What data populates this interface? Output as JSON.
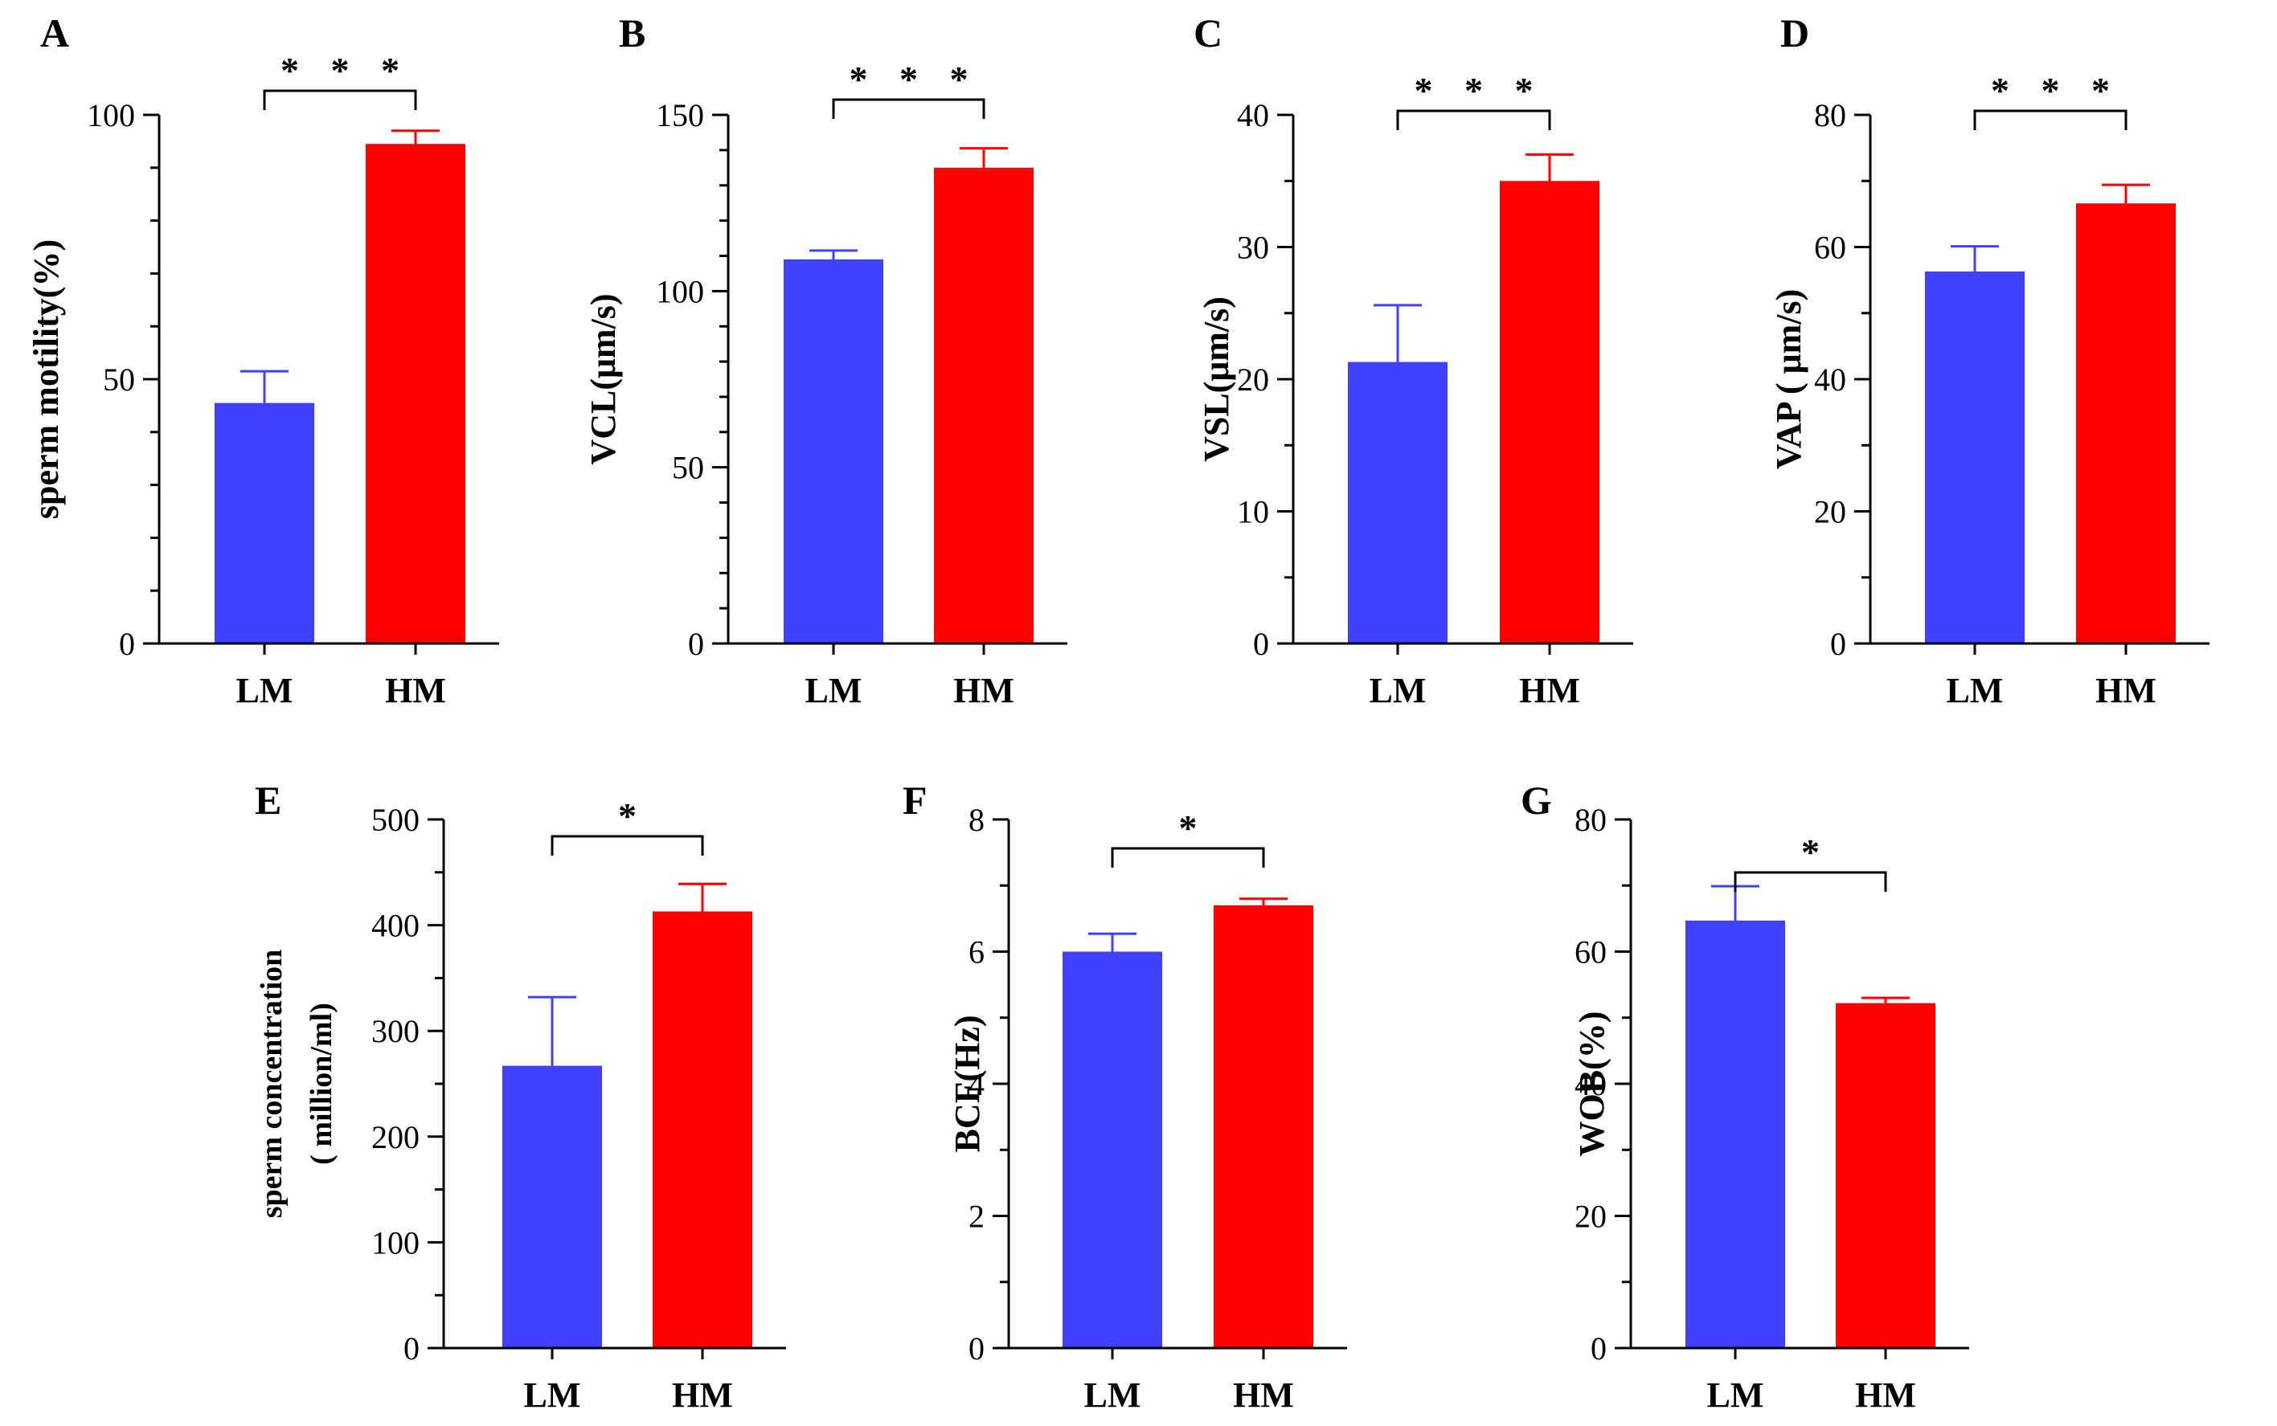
{
  "colors": {
    "LM": "#4040ff",
    "HM": "#ff0000",
    "axis": "#000000"
  },
  "chart_data": [
    {
      "panel": "A",
      "type": "bar",
      "categories": [
        "LM",
        "HM"
      ],
      "values": [
        45.5,
        94.5
      ],
      "errors": [
        6,
        2.5
      ],
      "ylabel": [
        "sperm motility(%)"
      ],
      "ylim": [
        0,
        100
      ],
      "yticks": [
        0,
        50,
        100
      ],
      "ytick_labels": [
        "0",
        "50",
        "100"
      ],
      "minor_ticks": 4,
      "significance": "* * *"
    },
    {
      "panel": "B",
      "type": "bar",
      "categories": [
        "LM",
        "HM"
      ],
      "values": [
        109,
        135
      ],
      "errors": [
        2.5,
        5.5
      ],
      "ylabel": [
        "VCL(μm/s)"
      ],
      "ylim": [
        0,
        150
      ],
      "yticks": [
        0,
        50,
        100,
        150
      ],
      "ytick_labels": [
        "0",
        "50",
        "100",
        "150"
      ],
      "minor_ticks": 4,
      "significance": "* * *"
    },
    {
      "panel": "C",
      "type": "bar",
      "categories": [
        "LM",
        "HM"
      ],
      "values": [
        21.3,
        35
      ],
      "errors": [
        4.3,
        2
      ],
      "ylabel": [
        "VSL(μm/s)"
      ],
      "ylim": [
        0,
        40
      ],
      "yticks": [
        0,
        10,
        20,
        30,
        40
      ],
      "ytick_labels": [
        "0",
        "10",
        "20",
        "30",
        "40"
      ],
      "minor_ticks": 1,
      "significance": "* * *"
    },
    {
      "panel": "D",
      "type": "bar",
      "categories": [
        "LM",
        "HM"
      ],
      "values": [
        56.3,
        66.6
      ],
      "errors": [
        3.8,
        2.8
      ],
      "ylabel": [
        "VAP ( μm/s)"
      ],
      "ylim": [
        0,
        80
      ],
      "yticks": [
        0,
        20,
        40,
        60,
        80
      ],
      "ytick_labels": [
        "0",
        "20",
        "40",
        "60",
        "80"
      ],
      "minor_ticks": 1,
      "significance": "* * *"
    },
    {
      "panel": "E",
      "type": "bar",
      "categories": [
        "LM",
        "HM"
      ],
      "values": [
        267,
        413
      ],
      "errors": [
        65,
        26
      ],
      "ylabel": [
        "sperm concentration",
        "( million/ml)"
      ],
      "ylim": [
        0,
        500
      ],
      "yticks": [
        0,
        100,
        200,
        300,
        400,
        500
      ],
      "ytick_labels": [
        "0",
        "100",
        "200",
        "300",
        "400",
        "500"
      ],
      "minor_ticks": 1,
      "significance": "*"
    },
    {
      "panel": "F",
      "type": "bar",
      "categories": [
        "LM",
        "HM"
      ],
      "values": [
        6,
        6.7
      ],
      "errors": [
        0.27,
        0.1
      ],
      "ylabel": [
        "BCF(Hz)"
      ],
      "ylim": [
        0,
        8
      ],
      "yticks": [
        0,
        2,
        4,
        6,
        8
      ],
      "ytick_labels": [
        "0",
        "2",
        "4",
        "6",
        "8"
      ],
      "minor_ticks": 1,
      "significance": "*"
    },
    {
      "panel": "G",
      "type": "bar",
      "categories": [
        "LM",
        "HM"
      ],
      "values": [
        64.7,
        52.2
      ],
      "errors": [
        5.2,
        0.8
      ],
      "ylabel": [
        "WOB(%)"
      ],
      "ylim": [
        0,
        80
      ],
      "yticks": [
        0,
        20,
        40,
        60,
        80
      ],
      "ytick_labels": [
        "0",
        "20",
        "40",
        "60",
        "80"
      ],
      "minor_ticks": 1,
      "significance": "*"
    }
  ]
}
